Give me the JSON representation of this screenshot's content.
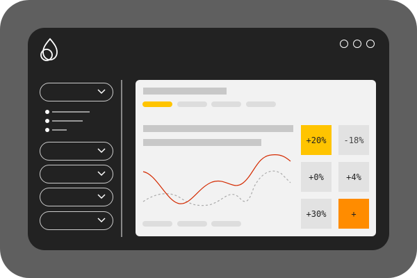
{
  "colors": {
    "accent_yellow": "#ffc400",
    "accent_orange": "#ff8c00",
    "line_red": "#d42a00"
  },
  "logo": {
    "icon": "leaf-drop-icon"
  },
  "window_controls": [
    "circle",
    "circle",
    "circle"
  ],
  "sidebar": {
    "dropdown_count": 5,
    "list_bullets": 3
  },
  "tiles": [
    {
      "label": "+20%",
      "highlight": "yellow"
    },
    {
      "label": "-18%"
    },
    {
      "label": "+0%"
    },
    {
      "label": "+4%"
    },
    {
      "label": "+30%"
    },
    {
      "label": "+",
      "highlight": "orange"
    }
  ]
}
